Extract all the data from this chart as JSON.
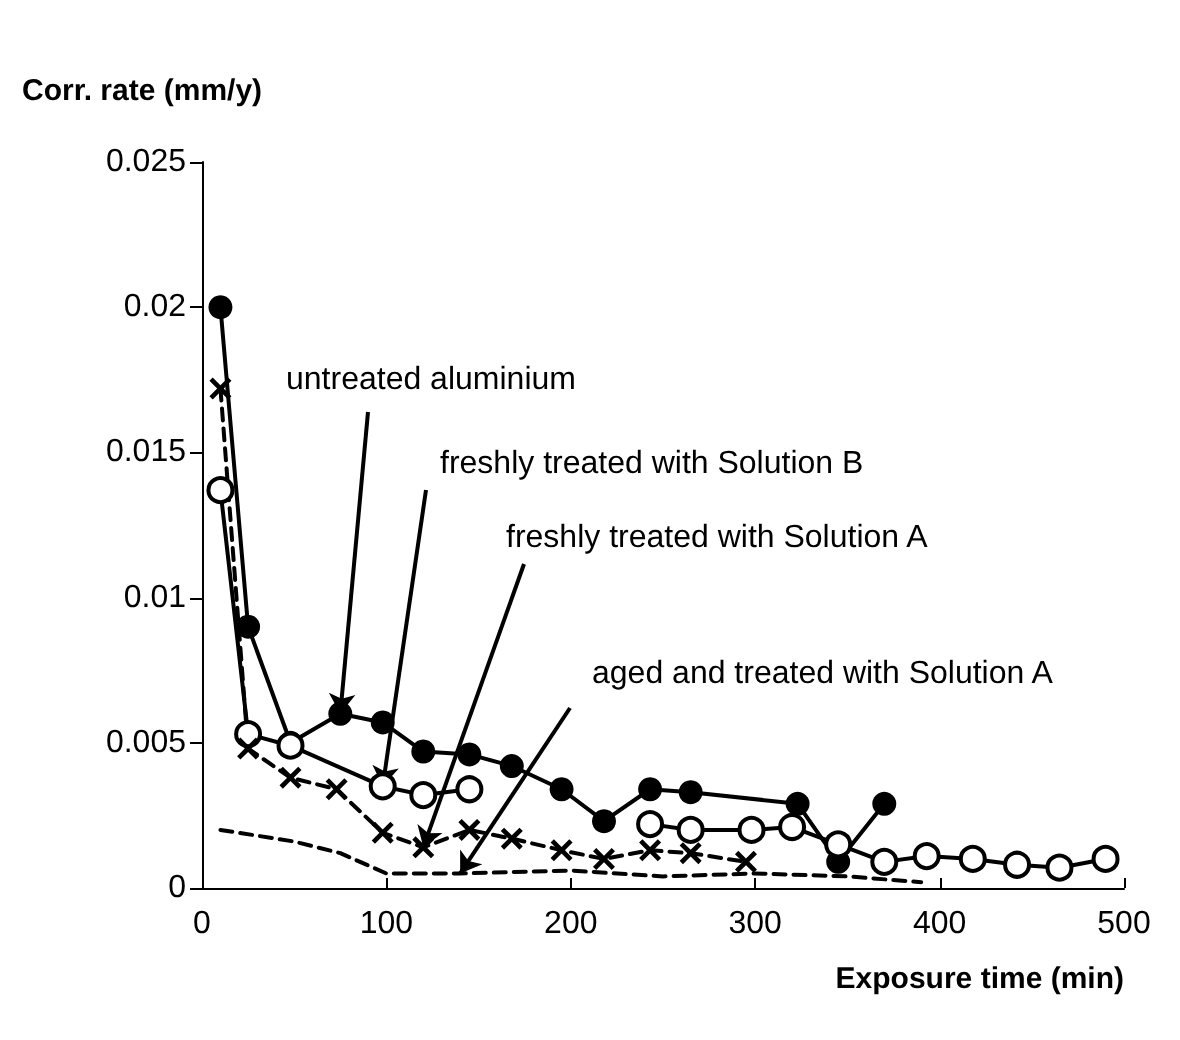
{
  "chart_data": {
    "type": "line",
    "xlabel": "Exposure time (min)",
    "ylabel": "Corr. rate (mm/y)",
    "xlim": [
      0,
      500
    ],
    "xticks": [
      0,
      100,
      200,
      300,
      400,
      500
    ],
    "ylim": [
      0,
      0.025
    ],
    "yticks": [
      0,
      0.005,
      0.01,
      0.015,
      0.02,
      0.025
    ],
    "grid": false,
    "series": [
      {
        "color": "#000000",
        "marker": "circle",
        "line_style": "solid",
        "x": [
          10,
          25,
          48,
          75,
          98,
          120,
          145,
          168,
          195,
          218,
          243,
          265,
          323,
          345,
          370
        ],
        "values": [
          0.02,
          0.009,
          0.005,
          0.006,
          0.0057,
          0.0047,
          0.0046,
          0.0042,
          0.0034,
          0.0023,
          0.0034,
          0.0033,
          0.0029,
          0.0009,
          0.0029
        ]
      },
      {
        "color": "#000000",
        "colors": [
          "#ffffff",
          "#ffffff",
          "#ffffff",
          "#ffffff",
          "#ffffff",
          "#ffffff",
          "#ffffff",
          "#ffffff",
          "#ffffff",
          "#ffffff",
          "#ffffff",
          "#ffffff",
          "#ffffff",
          "#ffffff",
          "#ffffff",
          "#ffffff",
          "#ffffff",
          "#ffffff"
        ],
        "marker": "circle",
        "line_style": "solid",
        "x": [
          10,
          25,
          48,
          98,
          120,
          145,
          195,
          243,
          265,
          298,
          320,
          345,
          370,
          393,
          418,
          442,
          465,
          490
        ],
        "values": [
          0.0137,
          0.0053,
          0.0049,
          0.0035,
          0.0032,
          0.0034,
          null,
          0.0022,
          0.002,
          0.002,
          0.0021,
          0.0015,
          0.0009,
          0.0011,
          0.001,
          0.0008,
          0.0007,
          0.001
        ]
      },
      {
        "color": "#000000",
        "marker": "cross",
        "line_style": "dashed",
        "x": [
          10,
          25,
          48,
          73,
          98,
          120,
          145,
          168,
          195,
          218,
          243,
          265,
          295
        ],
        "values": [
          0.0172,
          0.0048,
          0.0038,
          0.0034,
          0.0019,
          0.0014,
          0.002,
          0.0017,
          0.0013,
          0.001,
          0.0013,
          0.0012,
          0.0009
        ]
      },
      {
        "color": "#000000",
        "marker": "none",
        "line_style": "dashed",
        "x": [
          10,
          50,
          75,
          100,
          140,
          200,
          250,
          300,
          350,
          390
        ],
        "values": [
          0.002,
          0.0016,
          0.0012,
          0.0005,
          0.0005,
          0.0006,
          0.0004,
          0.0005,
          0.0004,
          0.0002
        ]
      }
    ],
    "annotations": [
      {
        "text": "untreated aluminium",
        "x": 75,
        "y": 0.006
      },
      {
        "text": "freshly treated with Solution B",
        "x": 98,
        "y": 0.0035
      },
      {
        "text": "freshly treated with Solution A",
        "x": 120,
        "y": 0.0014
      },
      {
        "text": "aged and treated with Solution A",
        "x": 140,
        "y": 0.0005
      }
    ]
  }
}
